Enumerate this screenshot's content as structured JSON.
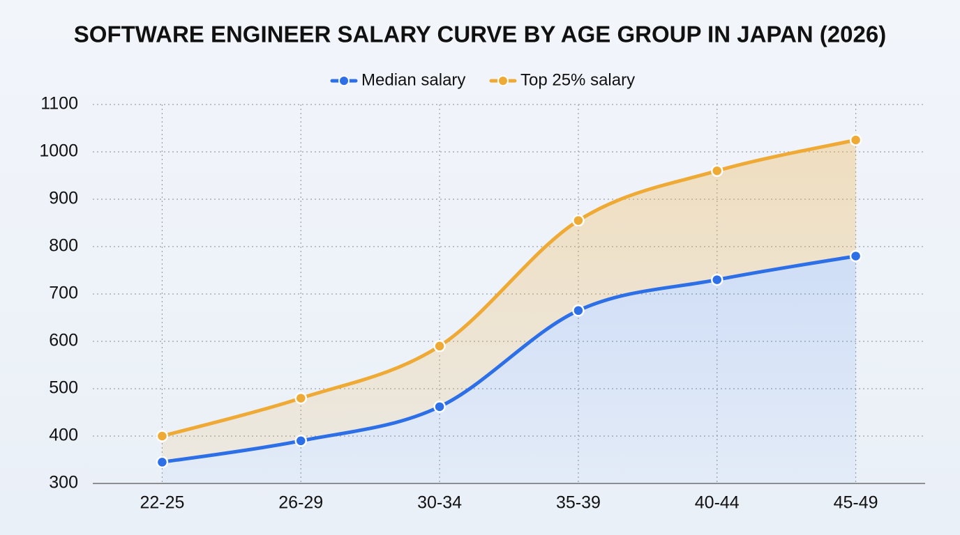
{
  "chart_data": {
    "type": "line",
    "title": "SOFTWARE ENGINEER SALARY CURVE BY AGE GROUP IN JAPAN (2026)",
    "categories": [
      "22-25",
      "26-29",
      "30-34",
      "35-39",
      "40-44",
      "45-49"
    ],
    "series": [
      {
        "name": "Median salary",
        "color": "#2d6fe6",
        "values": [
          345,
          390,
          462,
          665,
          730,
          780
        ]
      },
      {
        "name": "Top 25% salary",
        "color": "#eeaa35",
        "values": [
          400,
          480,
          590,
          855,
          960,
          1025
        ]
      }
    ],
    "ylim": [
      300,
      1100
    ],
    "yticks": [
      300,
      400,
      500,
      600,
      700,
      800,
      900,
      1000,
      1100
    ],
    "grid": true,
    "legend": "top"
  }
}
